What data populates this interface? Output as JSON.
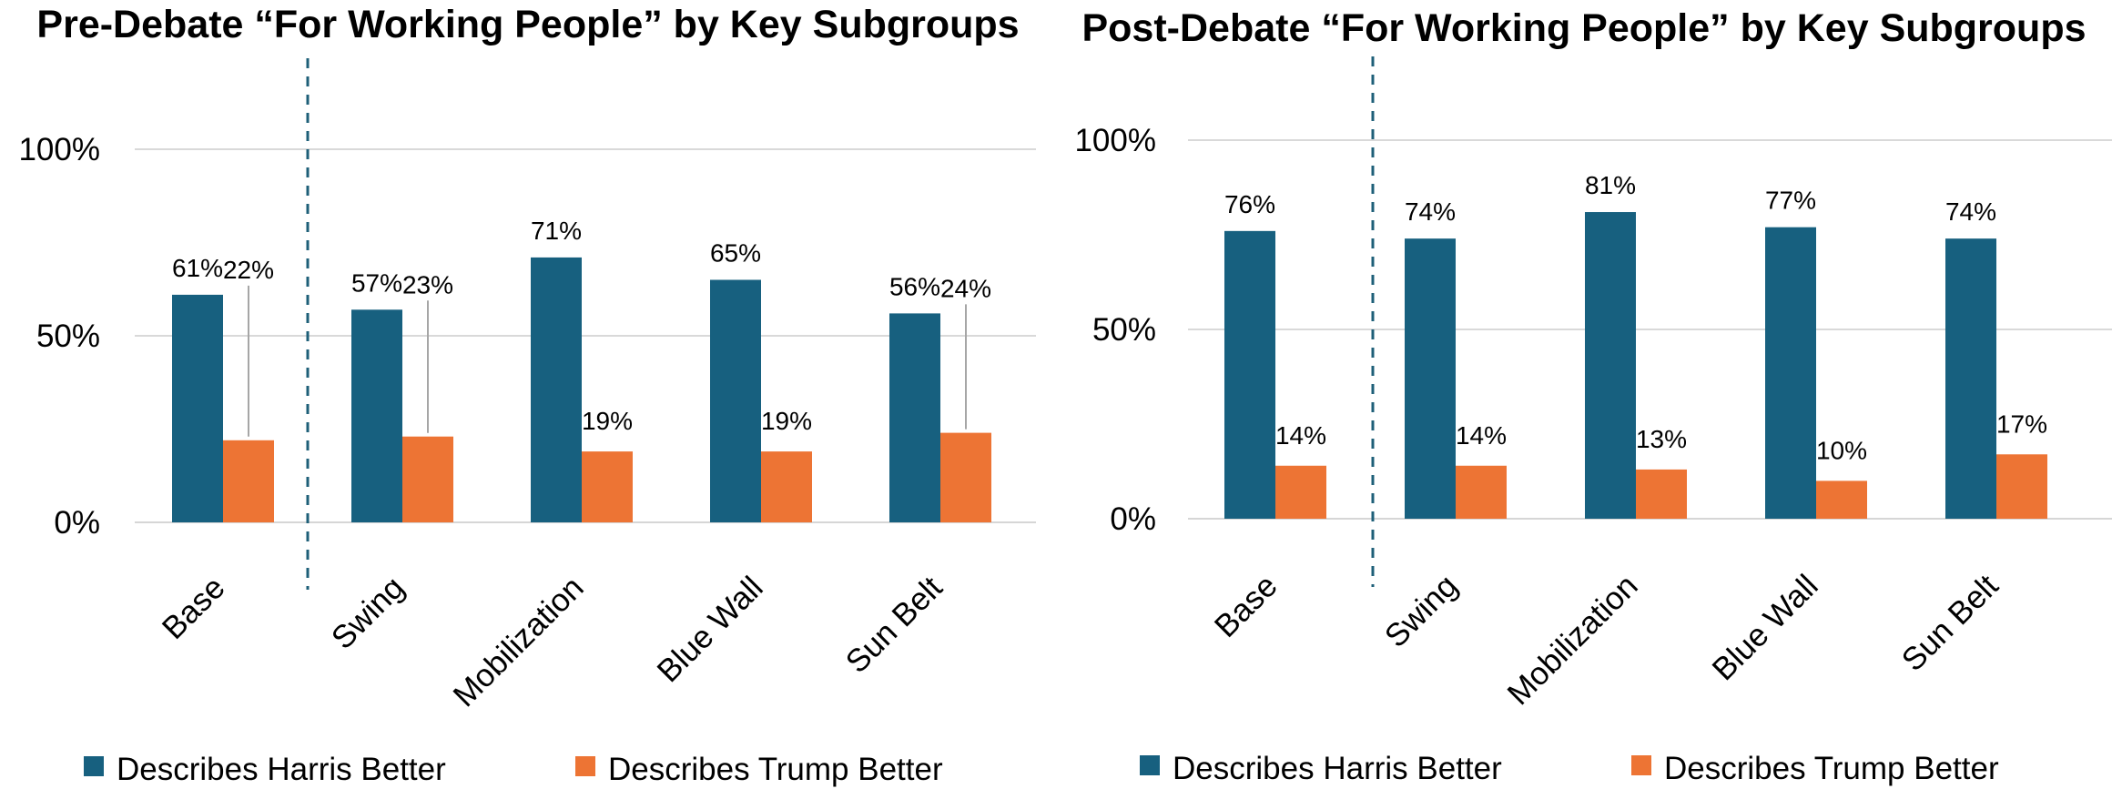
{
  "chart_data": [
    {
      "type": "bar",
      "title": "Pre-Debate “For Working People” by Key Subgroups",
      "categories": [
        "Base",
        "Swing",
        "Mobilization",
        "Blue Wall",
        "Sun Belt"
      ],
      "series": [
        {
          "name": "Describes Harris Better",
          "values": [
            61,
            57,
            71,
            65,
            56
          ],
          "color": "#17607f"
        },
        {
          "name": "Describes Trump Better",
          "values": [
            22,
            23,
            19,
            19,
            24
          ],
          "color": "#ed7434"
        }
      ],
      "data_labels": [
        [
          "61%",
          "57%",
          "71%",
          "65%",
          "56%"
        ],
        [
          "22%",
          "23%",
          "19%",
          "19%",
          "24%"
        ]
      ],
      "yticks": [
        "0%",
        "50%",
        "100%"
      ],
      "ylim": [
        0,
        100
      ],
      "grid": true,
      "legend": "bottom",
      "divider_after_category": "Base"
    },
    {
      "type": "bar",
      "title": "Post-Debate “For Working People” by Key Subgroups",
      "categories": [
        "Base",
        "Swing",
        "Mobilization",
        "Blue Wall",
        "Sun Belt"
      ],
      "series": [
        {
          "name": "Describes Harris Better",
          "values": [
            76,
            74,
            81,
            77,
            74
          ],
          "color": "#17607f"
        },
        {
          "name": "Describes Trump Better",
          "values": [
            14,
            14,
            13,
            10,
            17
          ],
          "color": "#ed7434"
        }
      ],
      "data_labels": [
        [
          "76%",
          "74%",
          "81%",
          "77%",
          "74%"
        ],
        [
          "14%",
          "14%",
          "13%",
          "10%",
          "17%"
        ]
      ],
      "yticks": [
        "0%",
        "50%",
        "100%"
      ],
      "ylim": [
        0,
        100
      ],
      "grid": true,
      "legend": "bottom",
      "divider_after_category": "Base"
    }
  ]
}
